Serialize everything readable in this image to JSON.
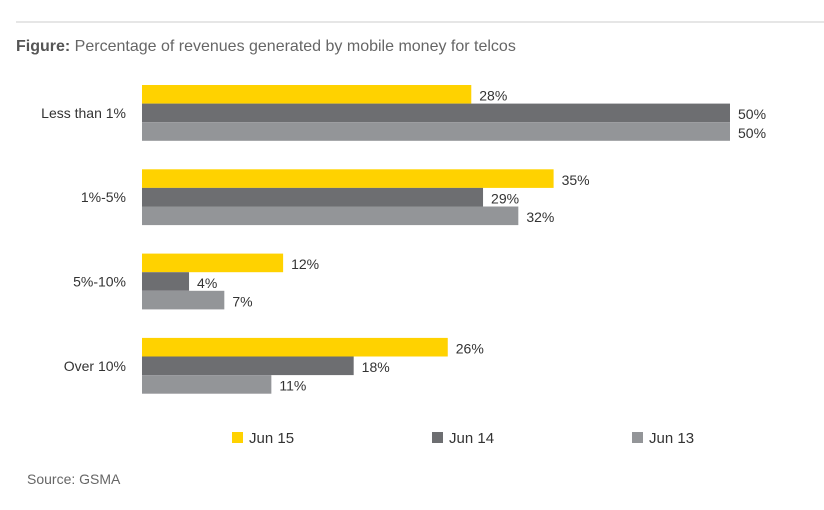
{
  "title_prefix": "Figure:",
  "title": "Percentage of revenues generated by mobile money for telcos",
  "source": "Source: GSMA",
  "chart_data": {
    "type": "bar",
    "orientation": "horizontal",
    "title": "Figure: Percentage of revenues generated by mobile money for telcos",
    "categories": [
      "Less than 1%",
      "1%-5%",
      "5%-10%",
      "Over 10%"
    ],
    "series": [
      {
        "name": "Jun 15",
        "color": "#FFD200",
        "values": [
          28,
          35,
          12,
          26
        ]
      },
      {
        "name": "Jun 14",
        "color": "#6D6E71",
        "values": [
          50,
          29,
          4,
          18
        ]
      },
      {
        "name": "Jun 13",
        "color": "#939598",
        "values": [
          50,
          32,
          7,
          11
        ]
      }
    ],
    "value_suffix": "%",
    "xlim": [
      0,
      50
    ],
    "grid": false,
    "legend": "bottom"
  }
}
